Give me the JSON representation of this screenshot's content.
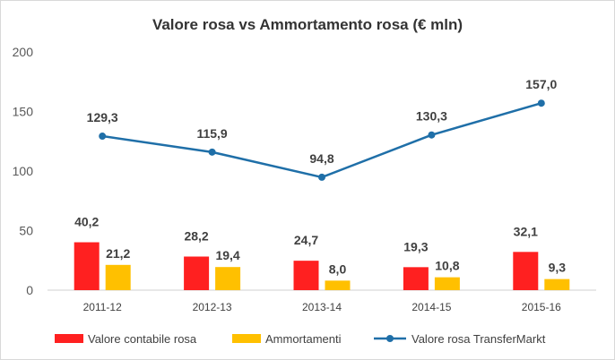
{
  "chart_data": {
    "type": "bar+line",
    "title": "Valore rosa vs Ammortamento  rosa (€ mln)",
    "categories": [
      "2011-12",
      "2012-13",
      "2013-14",
      "2014-15",
      "2015-16"
    ],
    "ylim": [
      0,
      200
    ],
    "yticks": [
      "0",
      "50",
      "100",
      "150",
      "200"
    ],
    "grid": false,
    "legend_position": "bottom",
    "series": [
      {
        "name": "Valore contabile rosa",
        "type": "bar",
        "color": "#ff2020",
        "values": [
          40.2,
          28.2,
          24.7,
          19.3,
          32.1
        ],
        "labels": [
          "40,2",
          "28,2",
          "24,7",
          "19,3",
          "32,1"
        ]
      },
      {
        "name": "Ammortamenti",
        "type": "bar",
        "color": "#ffc000",
        "values": [
          21.2,
          19.4,
          8.0,
          10.8,
          9.3
        ],
        "labels": [
          "21,2",
          "19,4",
          "8,0",
          "10,8",
          "9,3"
        ]
      },
      {
        "name": "Valore rosa TransferMarkt",
        "type": "line",
        "color": "#1f6fa8",
        "values": [
          129.3,
          115.9,
          94.8,
          130.3,
          157.0
        ],
        "labels": [
          "129,3",
          "115,9",
          "94,8",
          "130,3",
          "157,0"
        ]
      }
    ]
  }
}
